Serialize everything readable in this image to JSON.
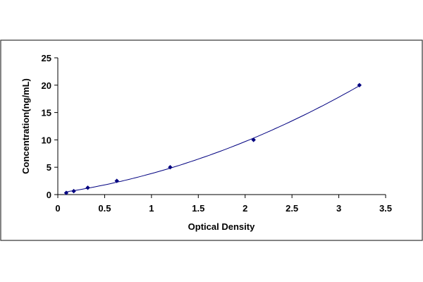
{
  "chart_data": {
    "type": "scatter",
    "title": "",
    "xlabel": "Optical Density",
    "ylabel": "Concentration(ng/mL)",
    "xlim": [
      0,
      3.5
    ],
    "ylim": [
      0,
      25
    ],
    "x_ticks": [
      "0",
      "0.5",
      "1",
      "1.5",
      "2",
      "2.5",
      "3",
      "3.5"
    ],
    "y_ticks": [
      "0",
      "5",
      "10",
      "15",
      "20",
      "25"
    ],
    "grid": false,
    "legend": "none",
    "series": [
      {
        "x": [
          0.09,
          0.17,
          0.32,
          0.63,
          1.2,
          2.09,
          3.22
        ],
        "y": [
          0.31,
          0.63,
          1.25,
          2.5,
          5,
          10,
          20
        ],
        "marker": "diamond",
        "trendline": true,
        "color": "#000080"
      }
    ]
  }
}
